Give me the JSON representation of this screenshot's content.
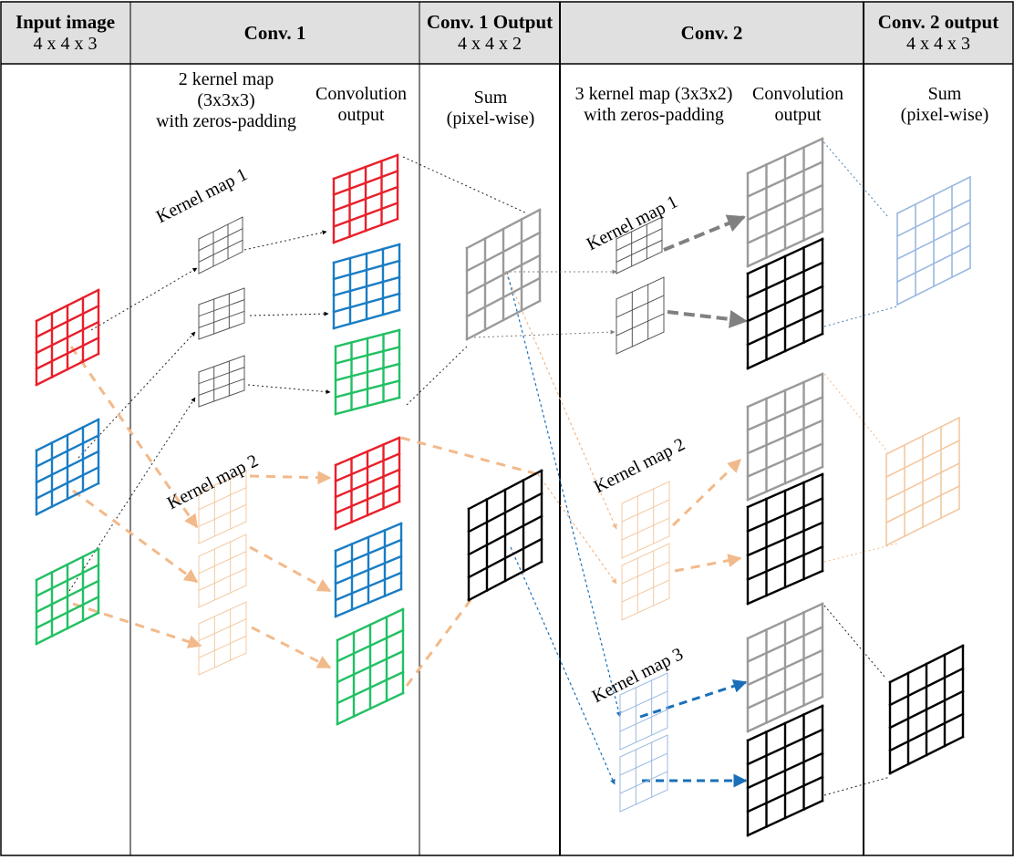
{
  "headers": [
    {
      "title": "Input image",
      "subtitle": "4 x 4 x 3"
    },
    {
      "title": "Conv. 1",
      "subtitle": ""
    },
    {
      "title": "Conv. 1 Output",
      "subtitle": "4 x 4 x 2"
    },
    {
      "title": "Conv. 2",
      "subtitle": ""
    },
    {
      "title": "Conv. 2 output",
      "subtitle": "4 x 4 x 3"
    }
  ],
  "captions": {
    "conv1_kernel": "2 kernel map\n(3x3x3)\nwith zeros-padding",
    "conv1_output": "Convolution\noutput",
    "conv1_sum": "Sum\n(pixel-wise)",
    "conv2_kernel": "3 kernel map (3x3x2)\nwith zeros-padding",
    "conv2_output": "Convolution\noutput",
    "conv2_sum": "Sum\n(pixel-wise)"
  },
  "kernel_labels": {
    "conv1_km1": "Kernel map 1",
    "conv1_km2": "Kernel map 2",
    "conv2_km1": "Kernel map 1",
    "conv2_km2": "Kernel map 2",
    "conv2_km3": "Kernel map 3"
  },
  "colors": {
    "red": "#e8202a",
    "blue": "#1a7dc4",
    "green": "#22c064",
    "gray": "#9a9a9a",
    "black": "#000000",
    "orange": "#f2b98a",
    "light_orange": "#f4c8a0",
    "light_blue": "#9ab8e0",
    "kernel_gray": "#555555",
    "border": "#000000",
    "header_bg": "#e0e0e0"
  }
}
